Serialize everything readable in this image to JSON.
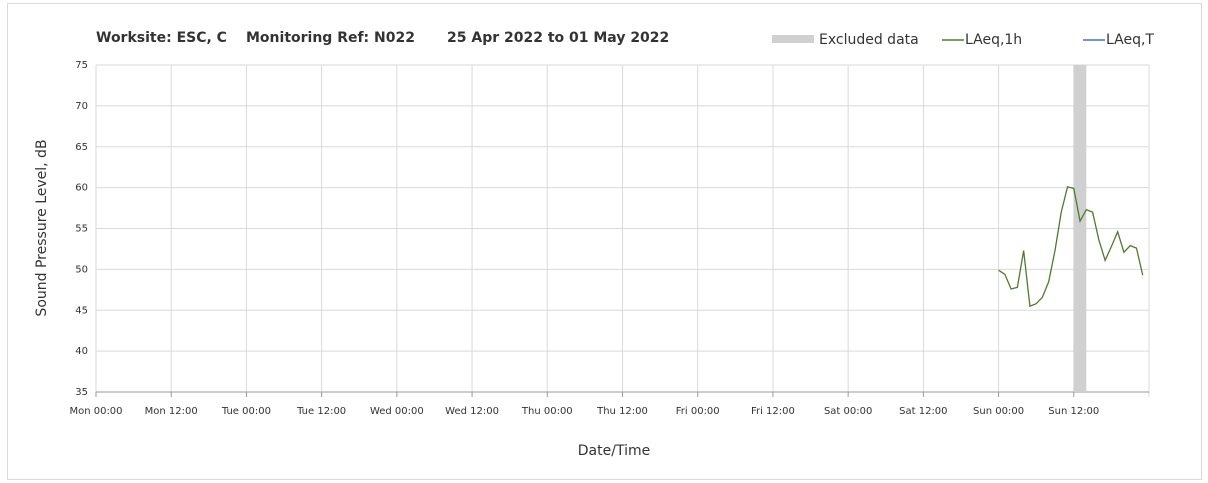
{
  "chart_data": {
    "type": "line",
    "title": [
      "Worksite: ESC, C",
      "Monitoring Ref: N022",
      "25 Apr 2022 to 01 May 2022"
    ],
    "x_label": "Date/Time",
    "y_label": "Sound Pressure Level, dB",
    "x": [
      144,
      145,
      146,
      147,
      148,
      149,
      150,
      151,
      152,
      153,
      154,
      155,
      156,
      157,
      158,
      159,
      160,
      161,
      162,
      163,
      164,
      165,
      166,
      167
    ],
    "series": [
      {
        "name": "LAeq,1h",
        "color": "#4f7a2e",
        "values": [
          49.9,
          49.4,
          47.6,
          47.8,
          52.3,
          45.5,
          45.8,
          46.6,
          48.5,
          52.3,
          57.0,
          60.1,
          59.9,
          55.9,
          57.3,
          57.0,
          53.6,
          51.1,
          52.8,
          54.6,
          52.1,
          52.9,
          52.6,
          49.3
        ]
      },
      {
        "name": "LAeq,T",
        "color": "#4472c4",
        "values": [
          null,
          null,
          null,
          null,
          null,
          null,
          null,
          null,
          null,
          null,
          null,
          null,
          null,
          null,
          null,
          null,
          null,
          null,
          null,
          null,
          null,
          null,
          null,
          null
        ]
      }
    ],
    "excluded": {
      "name": "Excluded data",
      "color": "#d0d0d0",
      "ranges": [
        [
          156,
          158
        ]
      ]
    },
    "xlim": [
      0,
      168
    ],
    "xticks": [
      {
        "value": 0,
        "label": "Mon 00:00"
      },
      {
        "value": 12,
        "label": "Mon 12:00"
      },
      {
        "value": 24,
        "label": "Tue 00:00"
      },
      {
        "value": 36,
        "label": "Tue 12:00"
      },
      {
        "value": 48,
        "label": "Wed 00:00"
      },
      {
        "value": 60,
        "label": "Wed 12:00"
      },
      {
        "value": 72,
        "label": "Thu 00:00"
      },
      {
        "value": 84,
        "label": "Thu 12:00"
      },
      {
        "value": 96,
        "label": "Fri 00:00"
      },
      {
        "value": 108,
        "label": "Fri 12:00"
      },
      {
        "value": 120,
        "label": "Sat 00:00"
      },
      {
        "value": 132,
        "label": "Sat 12:00"
      },
      {
        "value": 144,
        "label": "Sun 00:00"
      },
      {
        "value": 156,
        "label": "Sun 12:00"
      }
    ],
    "ylim": [
      35,
      75
    ],
    "yticks": [
      35,
      40,
      45,
      50,
      55,
      60,
      65,
      70,
      75
    ],
    "grid": true
  }
}
